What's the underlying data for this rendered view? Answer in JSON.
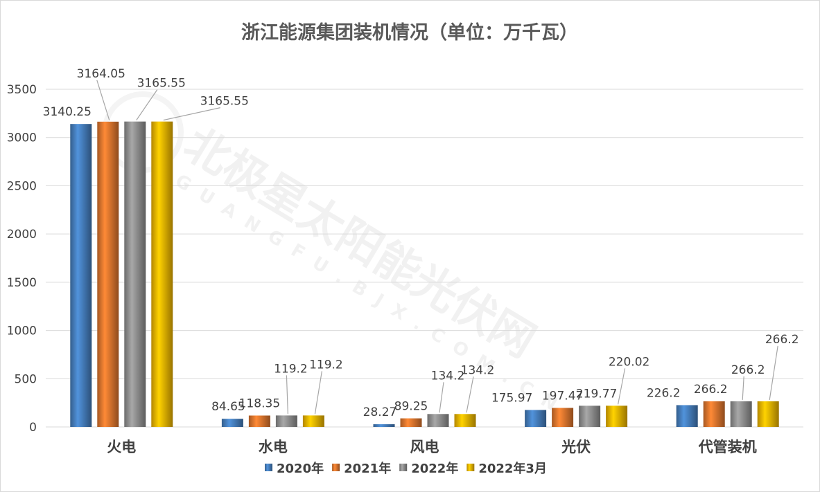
{
  "chart_data": {
    "type": "bar",
    "title": "浙江能源集团装机情况（单位：万千瓦）",
    "categories": [
      "火电",
      "水电",
      "风电",
      "光伏",
      "代管装机"
    ],
    "series": [
      {
        "name": "2020年",
        "color": "#4a86c8",
        "values": [
          3140.25,
          84.65,
          28.27,
          175.97,
          226.2
        ]
      },
      {
        "name": "2021年",
        "color": "#ed7d31",
        "values": [
          3164.05,
          118.35,
          89.25,
          197.47,
          266.2
        ]
      },
      {
        "name": "2022年",
        "color": "#999999",
        "values": [
          3165.55,
          119.2,
          134.2,
          219.77,
          266.2
        ]
      },
      {
        "name": "2022年3月",
        "color": "#ffc000",
        "values": [
          3165.55,
          119.2,
          134.2,
          220.02,
          266.2
        ]
      }
    ],
    "ylim": [
      0,
      3500
    ],
    "yticks": [
      0,
      500,
      1000,
      1500,
      2000,
      2500,
      3000,
      3500
    ],
    "grid": true,
    "legend": "bottom"
  },
  "watermark": {
    "main": "北极星太阳能光伏网",
    "sub": "GUANGFU.BJX.COM.CN"
  }
}
